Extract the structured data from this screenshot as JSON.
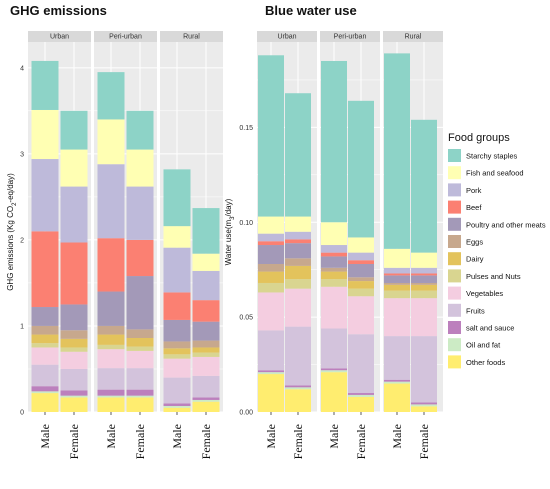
{
  "food_groups": [
    "Starchy staples",
    "Fish and seafood",
    "Pork",
    "Beef",
    "Poultry and other meats",
    "Eggs",
    "Dairy",
    "Pulses and Nuts",
    "Vegetables",
    "Fruits",
    "salt and sauce",
    "Oil and fat",
    "Other foods"
  ],
  "colors": {
    "Starchy staples": "#8dd3c7",
    "Fish and seafood": "#ffffb3",
    "Pork": "#bebada",
    "Beef": "#fb8072",
    "Poultry and other meats": "#a399b8",
    "Eggs": "#c7a88d",
    "Dairy": "#e3c35c",
    "Pulses and Nuts": "#d9d590",
    "Vegetables": "#f4cde0",
    "Fruits": "#d3c3dc",
    "salt and sauce": "#bc80bd",
    "Oil and fat": "#ccebc5",
    "Other foods": "#ffed6f"
  },
  "legend": {
    "title": "Food groups"
  },
  "chart_data": [
    {
      "type": "bar",
      "stacked": true,
      "title": "GHG emissions",
      "ylabel": "GHG emissions (Kg CO2-eq/day)",
      "ylabel_parts": [
        "GHG emissions (Kg CO",
        "2",
        "-eq/day)"
      ],
      "ylim": [
        0,
        4.3
      ],
      "yticks": [
        "0",
        "1",
        "2",
        "3",
        "4"
      ],
      "ytick_values": [
        0,
        1,
        2,
        3,
        4
      ],
      "panels": [
        "Urban",
        "Peri-urban",
        "Rural"
      ],
      "categories": [
        "Male",
        "Female"
      ],
      "stack_order_bottom_to_top": [
        "Other foods",
        "Oil and fat",
        "salt and sauce",
        "Fruits",
        "Vegetables",
        "Pulses and Nuts",
        "Dairy",
        "Eggs",
        "Poultry and other meats",
        "Beef",
        "Pork",
        "Fish and seafood",
        "Starchy staples"
      ],
      "series": [
        {
          "name": "Other foods",
          "values": [
            [
              0.22,
              0.17
            ],
            [
              0.17,
              0.17
            ],
            [
              0.05,
              0.12
            ]
          ]
        },
        {
          "name": "Oil and fat",
          "values": [
            [
              0.02,
              0.02
            ],
            [
              0.02,
              0.02
            ],
            [
              0.02,
              0.02
            ]
          ]
        },
        {
          "name": "salt and sauce",
          "values": [
            [
              0.06,
              0.06
            ],
            [
              0.07,
              0.07
            ],
            [
              0.03,
              0.03
            ]
          ]
        },
        {
          "name": "Fruits",
          "values": [
            [
              0.25,
              0.25
            ],
            [
              0.25,
              0.25
            ],
            [
              0.3,
              0.25
            ]
          ]
        },
        {
          "name": "Vegetables",
          "values": [
            [
              0.2,
              0.2
            ],
            [
              0.22,
              0.2
            ],
            [
              0.22,
              0.22
            ]
          ]
        },
        {
          "name": "Pulses and Nuts",
          "values": [
            [
              0.05,
              0.05
            ],
            [
              0.05,
              0.05
            ],
            [
              0.05,
              0.05
            ]
          ]
        },
        {
          "name": "Dairy",
          "values": [
            [
              0.1,
              0.1
            ],
            [
              0.12,
              0.1
            ],
            [
              0.07,
              0.06
            ]
          ]
        },
        {
          "name": "Eggs",
          "values": [
            [
              0.1,
              0.1
            ],
            [
              0.1,
              0.1
            ],
            [
              0.08,
              0.08
            ]
          ]
        },
        {
          "name": "Poultry and other meats",
          "values": [
            [
              0.22,
              0.3
            ],
            [
              0.4,
              0.62
            ],
            [
              0.25,
              0.22
            ]
          ]
        },
        {
          "name": "Beef",
          "values": [
            [
              0.88,
              0.72
            ],
            [
              0.62,
              0.42
            ],
            [
              0.32,
              0.25
            ]
          ]
        },
        {
          "name": "Pork",
          "values": [
            [
              0.84,
              0.65
            ],
            [
              0.86,
              0.62
            ],
            [
              0.52,
              0.34
            ]
          ]
        },
        {
          "name": "Fish and seafood",
          "values": [
            [
              0.57,
              0.43
            ],
            [
              0.52,
              0.43
            ],
            [
              0.25,
              0.2
            ]
          ]
        },
        {
          "name": "Starchy staples",
          "values": [
            [
              0.57,
              0.45
            ],
            [
              0.55,
              0.45
            ],
            [
              0.66,
              0.53
            ]
          ]
        }
      ]
    },
    {
      "type": "bar",
      "stacked": true,
      "title": "Blue water use",
      "ylabel": "Water use(m3/day)",
      "ylabel_parts": [
        "Water use(m",
        "3",
        "/day)"
      ],
      "ylim": [
        0,
        0.195
      ],
      "yticks": [
        "0.00",
        "0.05",
        "0.10",
        "0.15"
      ],
      "ytick_values": [
        0,
        0.05,
        0.1,
        0.15
      ],
      "panels": [
        "Urban",
        "Peri-urban",
        "Rural"
      ],
      "categories": [
        "Male",
        "Female"
      ],
      "stack_order_bottom_to_top": [
        "Other foods",
        "Oil and fat",
        "salt and sauce",
        "Fruits",
        "Vegetables",
        "Pulses and Nuts",
        "Dairy",
        "Eggs",
        "Poultry and other meats",
        "Beef",
        "Pork",
        "Fish and seafood",
        "Starchy staples"
      ],
      "series": [
        {
          "name": "Other foods",
          "values": [
            [
              0.02,
              0.012
            ],
            [
              0.021,
              0.008
            ],
            [
              0.015,
              0.003
            ]
          ]
        },
        {
          "name": "Oil and fat",
          "values": [
            [
              0.001,
              0.001
            ],
            [
              0.001,
              0.001
            ],
            [
              0.001,
              0.001
            ]
          ]
        },
        {
          "name": "salt and sauce",
          "values": [
            [
              0.001,
              0.001
            ],
            [
              0.001,
              0.001
            ],
            [
              0.001,
              0.001
            ]
          ]
        },
        {
          "name": "Fruits",
          "values": [
            [
              0.021,
              0.031
            ],
            [
              0.021,
              0.031
            ],
            [
              0.023,
              0.035
            ]
          ]
        },
        {
          "name": "Vegetables",
          "values": [
            [
              0.02,
              0.02
            ],
            [
              0.022,
              0.02
            ],
            [
              0.02,
              0.02
            ]
          ]
        },
        {
          "name": "Pulses and Nuts",
          "values": [
            [
              0.005,
              0.005
            ],
            [
              0.004,
              0.004
            ],
            [
              0.004,
              0.004
            ]
          ]
        },
        {
          "name": "Dairy",
          "values": [
            [
              0.006,
              0.007
            ],
            [
              0.004,
              0.004
            ],
            [
              0.003,
              0.003
            ]
          ]
        },
        {
          "name": "Eggs",
          "values": [
            [
              0.004,
              0.004
            ],
            [
              0.002,
              0.002
            ],
            [
              0.001,
              0.001
            ]
          ]
        },
        {
          "name": "Poultry and other meats",
          "values": [
            [
              0.01,
              0.008
            ],
            [
              0.006,
              0.007
            ],
            [
              0.004,
              0.004
            ]
          ]
        },
        {
          "name": "Beef",
          "values": [
            [
              0.002,
              0.002
            ],
            [
              0.002,
              0.002
            ],
            [
              0.001,
              0.001
            ]
          ]
        },
        {
          "name": "Pork",
          "values": [
            [
              0.004,
              0.004
            ],
            [
              0.004,
              0.004
            ],
            [
              0.003,
              0.003
            ]
          ]
        },
        {
          "name": "Fish and seafood",
          "values": [
            [
              0.009,
              0.008
            ],
            [
              0.012,
              0.008
            ],
            [
              0.01,
              0.008
            ]
          ]
        },
        {
          "name": "Starchy staples",
          "values": [
            [
              0.085,
              0.065
            ],
            [
              0.085,
              0.072
            ],
            [
              0.103,
              0.07
            ]
          ]
        }
      ]
    }
  ]
}
